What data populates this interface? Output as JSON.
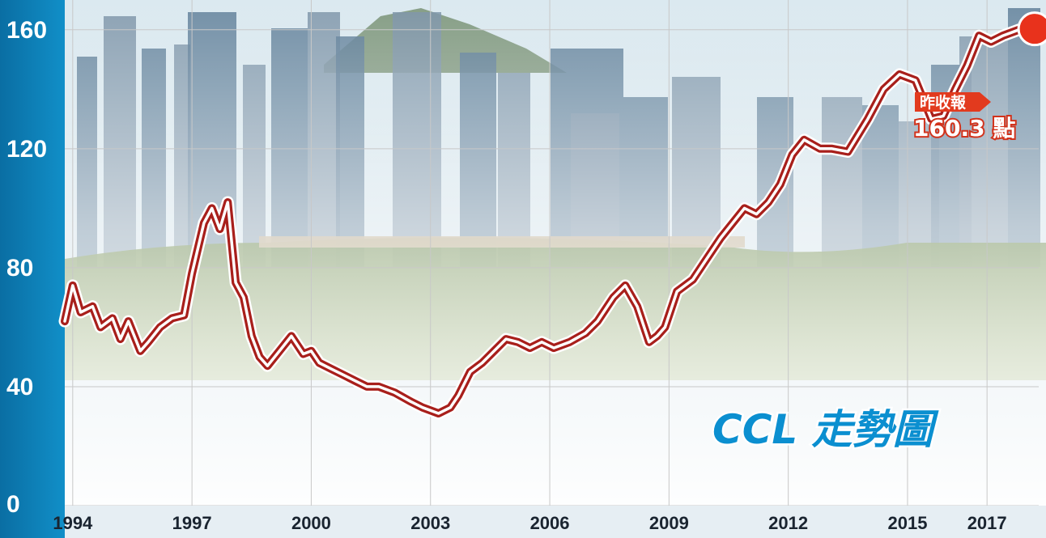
{
  "chart_data": {
    "type": "line",
    "title": "CCL 走勢圖",
    "xlabel": "",
    "ylabel": "",
    "ylim": [
      0,
      170
    ],
    "yticks": [
      0,
      40,
      80,
      120,
      160
    ],
    "xlim": [
      1993.8,
      2018.3
    ],
    "xticks": [
      1994,
      1997,
      2000,
      2003,
      2006,
      2009,
      2012,
      2015,
      2017
    ],
    "grid": true,
    "series": [
      {
        "name": "",
        "x": [
          1993.8,
          1994.0,
          1994.2,
          1994.5,
          1994.7,
          1995.0,
          1995.2,
          1995.4,
          1995.7,
          1995.9,
          1996.2,
          1996.5,
          1996.8,
          1997.0,
          1997.3,
          1997.5,
          1997.7,
          1997.9,
          1998.1,
          1998.3,
          1998.5,
          1998.7,
          1998.9,
          1999.2,
          1999.5,
          1999.8,
          2000.0,
          2000.2,
          2000.5,
          2000.8,
          2001.1,
          2001.4,
          2001.7,
          2002.1,
          2002.5,
          2002.8,
          2003.2,
          2003.5,
          2003.7,
          2004.0,
          2004.3,
          2004.6,
          2004.9,
          2005.2,
          2005.5,
          2005.8,
          2006.1,
          2006.5,
          2006.9,
          2007.2,
          2007.6,
          2007.9,
          2008.2,
          2008.5,
          2008.7,
          2008.9,
          2009.2,
          2009.6,
          2009.9,
          2010.3,
          2010.6,
          2010.9,
          2011.2,
          2011.5,
          2011.8,
          2012.1,
          2012.4,
          2012.8,
          2013.1,
          2013.5,
          2014.0,
          2014.4,
          2014.8,
          2015.2,
          2015.6,
          2015.9,
          2016.2,
          2016.5,
          2016.8,
          2017.1,
          2017.4,
          2017.8,
          2018.2
        ],
        "values": [
          62,
          74,
          65,
          67,
          60,
          63,
          56,
          62,
          52,
          55,
          60,
          63,
          64,
          78,
          95,
          100,
          93,
          102,
          75,
          70,
          57,
          50,
          47,
          52,
          57,
          51,
          52,
          48,
          46,
          44,
          42,
          40,
          40,
          38,
          35,
          33,
          31,
          33,
          37,
          45,
          48,
          52,
          56,
          55,
          53,
          55,
          53,
          55,
          58,
          62,
          70,
          74,
          67,
          55,
          57,
          60,
          72,
          76,
          82,
          90,
          95,
          100,
          98,
          102,
          108,
          118,
          123,
          120,
          120,
          119,
          130,
          140,
          145,
          143,
          130,
          131,
          140,
          148,
          158,
          156,
          158,
          160,
          160.3
        ]
      }
    ],
    "annotation": {
      "tag": "昨收報",
      "value": "160.3 點"
    }
  }
}
